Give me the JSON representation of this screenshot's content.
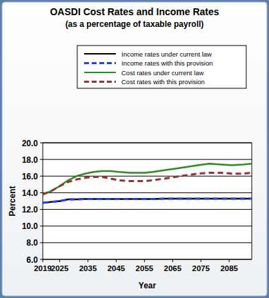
{
  "chart_data": {
    "type": "line",
    "title": "OASDI Cost Rates and Income Rates",
    "subtitle": "(as a percentage of taxable payroll)",
    "x_label": "Year",
    "y_label": "Percent",
    "x": [
      2019,
      2022,
      2025,
      2028,
      2031,
      2034,
      2037,
      2040,
      2043,
      2046,
      2050,
      2055,
      2058,
      2062,
      2066,
      2070,
      2074,
      2078,
      2082,
      2086,
      2090,
      2093
    ],
    "series": [
      {
        "name": "Income rates under current law",
        "color": "#000000",
        "line_style": "solid",
        "values": [
          12.8,
          12.9,
          13.0,
          13.2,
          13.2,
          13.25,
          13.25,
          13.25,
          13.25,
          13.25,
          13.25,
          13.25,
          13.25,
          13.3,
          13.3,
          13.3,
          13.3,
          13.3,
          13.3,
          13.3,
          13.3,
          13.3
        ]
      },
      {
        "name": "Income rates with this provision",
        "color": "#1f3fff",
        "line_style": "dashed",
        "values": [
          12.8,
          12.9,
          13.0,
          13.2,
          13.2,
          13.25,
          13.25,
          13.25,
          13.25,
          13.25,
          13.25,
          13.25,
          13.25,
          13.3,
          13.3,
          13.3,
          13.3,
          13.3,
          13.3,
          13.3,
          13.3,
          13.3
        ]
      },
      {
        "name": "Cost rates under current law",
        "color": "#2e8b22",
        "line_style": "solid",
        "values": [
          13.8,
          14.2,
          14.8,
          15.5,
          16.0,
          16.3,
          16.5,
          16.6,
          16.6,
          16.5,
          16.4,
          16.4,
          16.5,
          16.7,
          16.9,
          17.1,
          17.3,
          17.5,
          17.4,
          17.3,
          17.4,
          17.5
        ]
      },
      {
        "name": "Cost rates with this provision",
        "color": "#993333",
        "line_style": "dashed",
        "values": [
          13.8,
          14.2,
          14.8,
          15.3,
          15.6,
          15.8,
          15.9,
          15.9,
          15.7,
          15.5,
          15.4,
          15.4,
          15.5,
          15.7,
          15.9,
          16.1,
          16.3,
          16.4,
          16.4,
          16.3,
          16.3,
          16.4
        ]
      }
    ],
    "xlim": [
      2019,
      2093
    ],
    "xticks": [
      2019,
      2025,
      2035,
      2045,
      2055,
      2065,
      2075,
      2085
    ],
    "ylim": [
      6,
      20
    ],
    "yticks": [
      {
        "value": 6,
        "label": "6.0"
      },
      {
        "value": 8,
        "label": "8.0"
      },
      {
        "value": 10,
        "label": "10.0"
      },
      {
        "value": 12,
        "label": "12.0"
      },
      {
        "value": 14,
        "label": "14.0"
      },
      {
        "value": 16,
        "label": "16.0"
      },
      {
        "value": 18,
        "label": "18.0"
      },
      {
        "value": 20,
        "label": "20.0"
      }
    ],
    "grid": true,
    "legend": "top"
  }
}
